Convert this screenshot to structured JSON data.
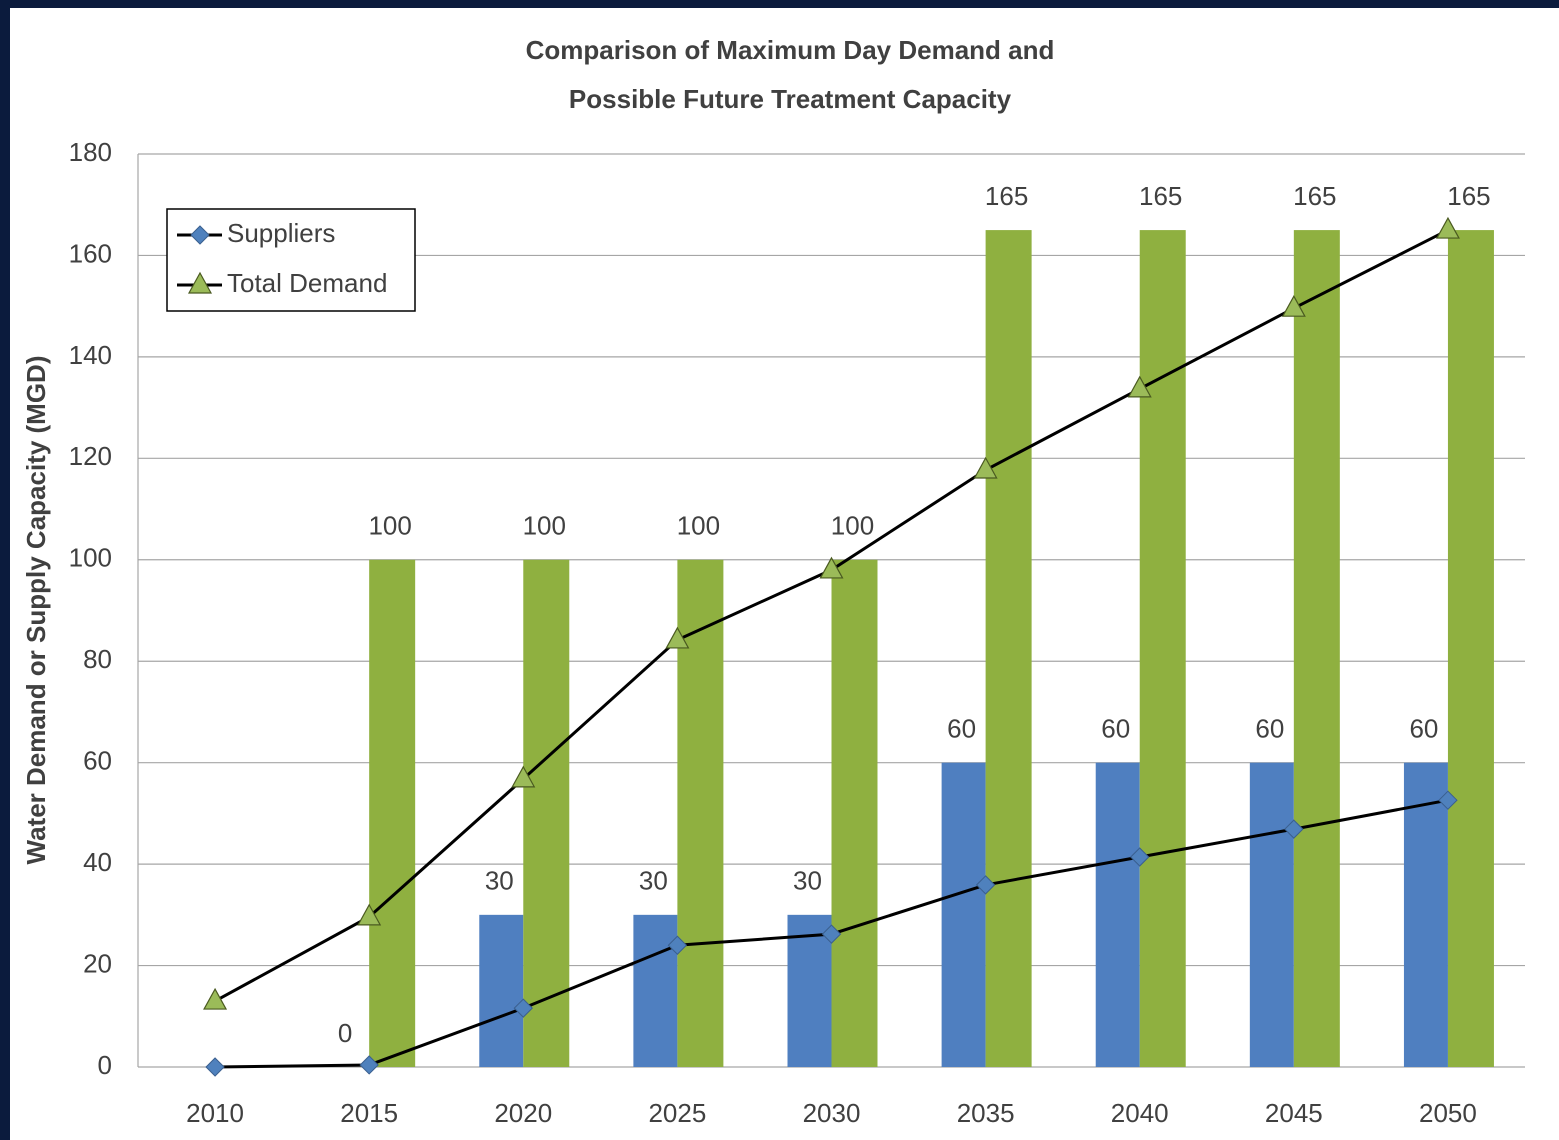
{
  "chart_data": {
    "type": "bar_line",
    "title": [
      "Comparison of Maximum Day Demand and",
      "Possible Future Treatment Capacity"
    ],
    "y_label": "Water Demand or Supply Capacity (MGD)",
    "categories": [
      "2010",
      "2015",
      "2020",
      "2025",
      "2030",
      "2035",
      "2040",
      "2045",
      "2050"
    ],
    "bar_series": [
      {
        "color": "#4f7fc0",
        "values": [
          null,
          0,
          30,
          30,
          30,
          60,
          60,
          60,
          60
        ]
      },
      {
        "color": "#8fb040",
        "values": [
          null,
          100,
          100,
          100,
          100,
          165,
          165,
          165,
          165
        ]
      }
    ],
    "series": [
      {
        "name": "Suppliers",
        "color": "#4f81bd",
        "marker": "diamond",
        "values": [
          0,
          0.4,
          11.6,
          24,
          26.2,
          35.9,
          41.4,
          46.9,
          52.6
        ]
      },
      {
        "name": "Total Demand",
        "color": "#9bbb59",
        "marker": "triangle",
        "values": [
          13,
          29.6,
          56.8,
          84.2,
          98,
          117.7,
          133.7,
          149.6,
          165
        ]
      }
    ],
    "ylim": [
      0,
      180
    ],
    "yticks": [
      0,
      20,
      40,
      60,
      80,
      100,
      120,
      140,
      160,
      180
    ],
    "grid": true,
    "legend": "upper left"
  }
}
